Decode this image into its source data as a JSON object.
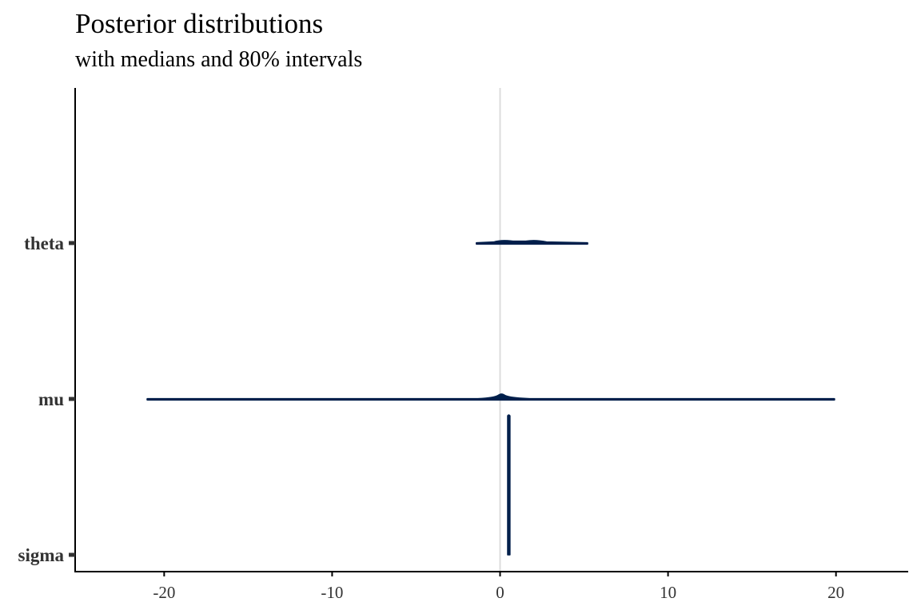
{
  "chart_data": {
    "type": "ridgeline",
    "title": "Posterior distributions",
    "subtitle": "with medians and 80% intervals",
    "xlabel": "",
    "ylabel": "",
    "xlim": [
      -25.3,
      24.3
    ],
    "x_ticks": [
      -20,
      -10,
      0,
      10,
      20
    ],
    "x_tick_labels": [
      "-20",
      "-10",
      "0",
      "10",
      "20"
    ],
    "reference_line_x": 0,
    "grid": false,
    "legend": "none",
    "parameters": [
      {
        "name": "theta",
        "min": -1.4,
        "max": 5.2,
        "median": 0.1
      },
      {
        "name": "mu",
        "min": -21.0,
        "max": 19.9,
        "median": 0.1
      },
      {
        "name": "sigma",
        "min": 0.5,
        "max": 0.55,
        "median": 0.52
      }
    ],
    "colors": {
      "density": "#011f4b",
      "reference_line": "#dddddd",
      "axis": "#000000",
      "tick_text": "#333333"
    }
  }
}
